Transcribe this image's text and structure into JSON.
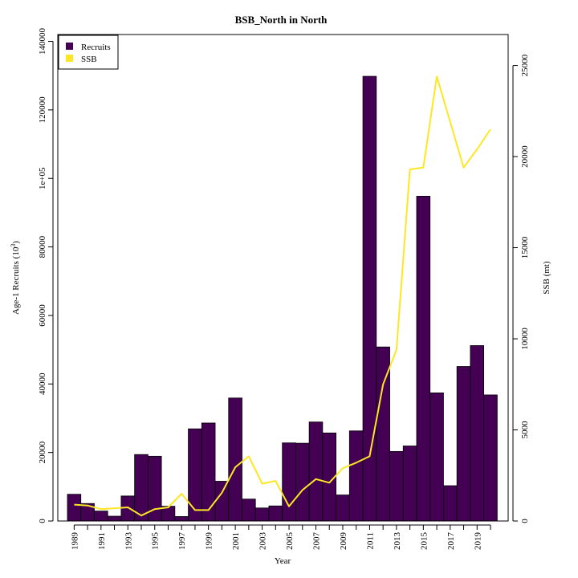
{
  "chart_data": {
    "type": "bar",
    "title": "BSB_North in North",
    "xlabel": "Year",
    "ylabel_left_prefix": "Age-1 Recruits (10",
    "ylabel_left_exp": "3",
    "ylabel_left_suffix": ")",
    "ylabel_right": "SSB (mt)",
    "ylim_left": [
      0,
      142000
    ],
    "ylim_right": [
      0,
      26700
    ],
    "left_ticks": [
      0,
      20000,
      40000,
      60000,
      80000,
      100000,
      120000,
      140000
    ],
    "left_tick_labels": [
      "0",
      "20000",
      "40000",
      "60000",
      "80000",
      "1e+05",
      "120000",
      "140000"
    ],
    "right_ticks": [
      0,
      5000,
      10000,
      15000,
      20000,
      25000
    ],
    "right_tick_labels": [
      "0",
      "5000",
      "10000",
      "15000",
      "20000",
      "25000"
    ],
    "x_tick_labels": [
      "1989",
      "1991",
      "1993",
      "1995",
      "1997",
      "1999",
      "2001",
      "2003",
      "2005",
      "2007",
      "2009",
      "2011",
      "2013",
      "2015",
      "2017",
      "2019"
    ],
    "grid": false,
    "legend_position": "top-left",
    "colors": {
      "recruits": "#440154",
      "ssb": "#fde725"
    },
    "years": [
      1989,
      1990,
      1991,
      1992,
      1993,
      1994,
      1995,
      1996,
      1997,
      1998,
      1999,
      2000,
      2001,
      2002,
      2003,
      2004,
      2005,
      2006,
      2007,
      2008,
      2009,
      2010,
      2011,
      2012,
      2013,
      2014,
      2015,
      2016,
      2017,
      2018,
      2019,
      2020
    ],
    "series": [
      {
        "name": "Recruits",
        "type": "bar",
        "axis": "left",
        "values": [
          7800,
          5100,
          2900,
          1400,
          7300,
          19400,
          18900,
          4300,
          1300,
          26900,
          28600,
          11600,
          35900,
          6400,
          3800,
          4400,
          22800,
          22700,
          28900,
          25700,
          7600,
          26300,
          129800,
          50800,
          20300,
          21900,
          94800,
          37400,
          10300,
          45100,
          51200,
          36800
        ]
      },
      {
        "name": "SSB",
        "type": "line",
        "axis": "right",
        "values": [
          900,
          850,
          650,
          700,
          750,
          300,
          650,
          750,
          1500,
          600,
          600,
          1550,
          2950,
          3550,
          2050,
          2200,
          800,
          1700,
          2300,
          2100,
          2900,
          3200,
          3550,
          7500,
          9400,
          19300,
          19400,
          24400,
          21900,
          19400,
          20400,
          21500
        ]
      }
    ]
  }
}
